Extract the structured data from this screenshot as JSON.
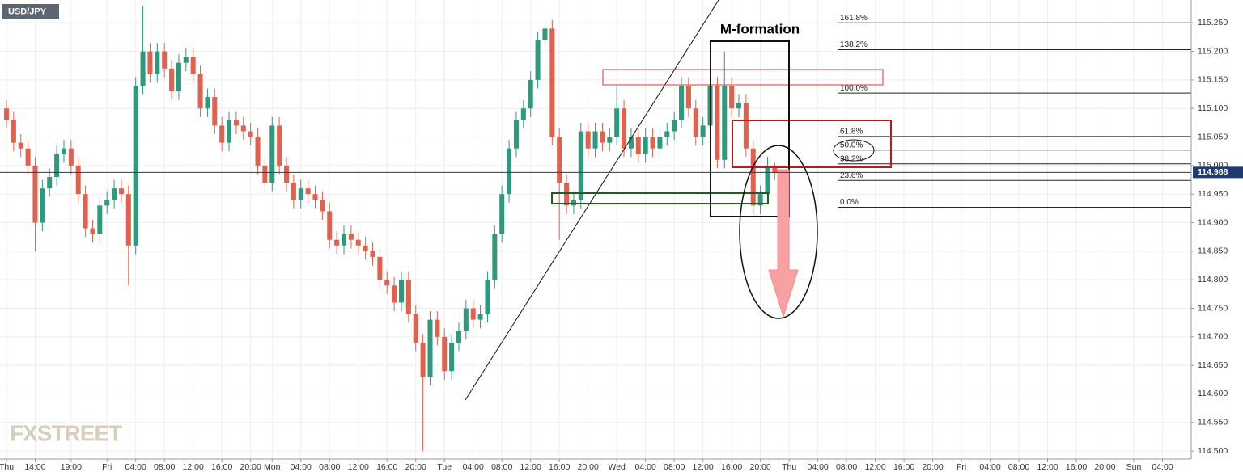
{
  "chart_data": {
    "type": "candlestick",
    "symbol": "USD/JPY",
    "watermark": "FXSTREET",
    "annotation": "M-formation",
    "up_color": "#2e9a7d",
    "down_color": "#e0614e",
    "grid": true,
    "xlim": [
      -0.9,
      165
    ],
    "ylim": [
      114.486,
      115.29
    ],
    "xticks": [
      {
        "value": 0,
        "label": "Thu"
      },
      {
        "value": 4,
        "label": "14:00"
      },
      {
        "value": 9,
        "label": "19:00"
      },
      {
        "value": 14,
        "label": "Fri"
      },
      {
        "value": 18,
        "label": "04:00"
      },
      {
        "value": 22,
        "label": "08:00"
      },
      {
        "value": 26,
        "label": "12:00"
      },
      {
        "value": 30,
        "label": "16:00"
      },
      {
        "value": 34,
        "label": "20:00"
      },
      {
        "value": 37,
        "label": "Mon"
      },
      {
        "value": 41,
        "label": "04:00"
      },
      {
        "value": 45,
        "label": "08:00"
      },
      {
        "value": 49,
        "label": "12:00"
      },
      {
        "value": 53,
        "label": "16:00"
      },
      {
        "value": 57,
        "label": "20:00"
      },
      {
        "value": 61,
        "label": "Tue"
      },
      {
        "value": 65,
        "label": "04:00"
      },
      {
        "value": 69,
        "label": "08:00"
      },
      {
        "value": 73,
        "label": "12:00"
      },
      {
        "value": 77,
        "label": "16:00"
      },
      {
        "value": 81,
        "label": "20:00"
      },
      {
        "value": 85,
        "label": "Wed"
      },
      {
        "value": 89,
        "label": "04:00"
      },
      {
        "value": 93,
        "label": "08:00"
      },
      {
        "value": 97,
        "label": "12:00"
      },
      {
        "value": 101,
        "label": "16:00"
      },
      {
        "value": 105,
        "label": "20:00"
      },
      {
        "value": 109,
        "label": "Thu"
      },
      {
        "value": 113,
        "label": "04:00"
      },
      {
        "value": 117,
        "label": "08:00"
      },
      {
        "value": 121,
        "label": "12:00"
      },
      {
        "value": 125,
        "label": "16:00"
      },
      {
        "value": 129,
        "label": "20:00"
      },
      {
        "value": 133,
        "label": "Fri"
      },
      {
        "value": 137,
        "label": "04:00"
      },
      {
        "value": 141,
        "label": "08:00"
      },
      {
        "value": 145,
        "label": "12:00"
      },
      {
        "value": 149,
        "label": "16:00"
      },
      {
        "value": 153,
        "label": "20:00"
      },
      {
        "value": 157,
        "label": "Sun"
      },
      {
        "value": 161,
        "label": "04:00"
      }
    ],
    "yticks": [
      {
        "value": 114.5,
        "label": "114.500"
      },
      {
        "value": 114.55,
        "label": "114.550"
      },
      {
        "value": 114.6,
        "label": "114.600"
      },
      {
        "value": 114.65,
        "label": "114.650"
      },
      {
        "value": 114.7,
        "label": "114.700"
      },
      {
        "value": 114.75,
        "label": "114.750"
      },
      {
        "value": 114.8,
        "label": "114.800"
      },
      {
        "value": 114.85,
        "label": "114.850"
      },
      {
        "value": 114.9,
        "label": "114.900"
      },
      {
        "value": 114.95,
        "label": "114.950"
      },
      {
        "value": 115,
        "label": "115.000"
      },
      {
        "value": 115.05,
        "label": "115.050"
      },
      {
        "value": 115.1,
        "label": "115.100"
      },
      {
        "value": 115.15,
        "label": "115.150"
      },
      {
        "value": 115.2,
        "label": "115.200"
      },
      {
        "value": 115.25,
        "label": "115.250"
      }
    ],
    "last_price": 114.988,
    "fib_labels": [
      "161.8%",
      "138.2%",
      "100.0%",
      "61.8%",
      "50.0%",
      "38.2%",
      "23.6%",
      "0.0%"
    ],
    "fib_prices": [
      115.25,
      115.203,
      115.127,
      115.051,
      115.027,
      115.003,
      114.974,
      114.927
    ],
    "x": [
      0,
      1,
      2,
      3,
      4,
      5,
      6,
      7,
      8,
      9,
      10,
      11,
      12,
      13,
      14,
      15,
      16,
      17,
      18,
      19,
      20,
      21,
      22,
      23,
      24,
      25,
      26,
      27,
      28,
      29,
      30,
      31,
      32,
      33,
      34,
      35,
      36,
      37,
      38,
      39,
      40,
      41,
      42,
      43,
      44,
      45,
      46,
      47,
      48,
      49,
      50,
      51,
      52,
      53,
      54,
      55,
      56,
      57,
      58,
      59,
      60,
      61,
      62,
      63,
      64,
      65,
      66,
      67,
      68,
      69,
      70,
      71,
      72,
      73,
      74,
      75,
      76,
      77,
      78,
      79,
      80,
      81,
      82,
      83,
      84,
      85,
      86,
      87,
      88,
      89,
      90,
      91,
      92,
      93,
      94,
      95,
      96,
      97,
      98,
      99,
      100,
      101,
      102,
      103,
      104,
      105,
      106,
      107
    ],
    "open": [
      115.1,
      115.08,
      115.04,
      115.03,
      115,
      114.9,
      114.96,
      114.98,
      115.02,
      115.03,
      115,
      114.95,
      114.89,
      114.88,
      114.93,
      114.94,
      114.96,
      114.95,
      114.86,
      115.14,
      115.2,
      115.16,
      115.2,
      115.17,
      115.13,
      115.18,
      115.19,
      115.16,
      115.1,
      115.12,
      115.07,
      115.04,
      115.08,
      115.07,
      115.06,
      115.05,
      115,
      114.97,
      115.07,
      115,
      114.97,
      114.94,
      114.96,
      114.95,
      114.94,
      114.92,
      114.87,
      114.86,
      114.88,
      114.87,
      114.86,
      114.85,
      114.84,
      114.8,
      114.79,
      114.76,
      114.8,
      114.74,
      114.69,
      114.63,
      114.73,
      114.7,
      114.64,
      114.69,
      114.71,
      114.75,
      114.73,
      114.74,
      114.8,
      114.88,
      114.95,
      115.03,
      115.08,
      115.1,
      115.15,
      115.22,
      115.24,
      115.05,
      114.97,
      114.93,
      114.94,
      115.06,
      115.03,
      115.06,
      115.04,
      115.05,
      115.1,
      115.03,
      115.05,
      115.02,
      115.05,
      115.03,
      115.05,
      115.06,
      115.08,
      115.14,
      115.1,
      115.05,
      115.07,
      115.14,
      115.01,
      115.14,
      115.1,
      115.11,
      115.03,
      114.93,
      114.95,
      115
    ],
    "high": [
      115.115,
      115.095,
      115.055,
      115.045,
      115.015,
      114.975,
      114.995,
      115.035,
      115.045,
      115.045,
      115.015,
      114.965,
      114.905,
      114.945,
      114.955,
      114.975,
      114.975,
      114.965,
      115.155,
      115.28,
      115.215,
      115.215,
      115.215,
      115.185,
      115.195,
      115.205,
      115.205,
      115.175,
      115.135,
      115.135,
      115.085,
      115.095,
      115.095,
      115.085,
      115.075,
      115.065,
      115.015,
      115.085,
      115.085,
      115.015,
      114.985,
      114.975,
      114.975,
      114.965,
      114.955,
      114.935,
      114.885,
      114.895,
      114.895,
      114.885,
      114.875,
      114.865,
      114.855,
      114.815,
      114.805,
      114.815,
      114.815,
      114.755,
      114.705,
      114.745,
      114.745,
      114.715,
      114.705,
      114.725,
      114.765,
      114.765,
      114.755,
      114.815,
      114.895,
      114.965,
      115.045,
      115.095,
      115.115,
      115.165,
      115.235,
      115.245,
      115.255,
      115.065,
      114.985,
      114.955,
      115.075,
      115.075,
      115.075,
      115.075,
      115.065,
      115.14,
      115.115,
      115.065,
      115.065,
      115.065,
      115.065,
      115.065,
      115.075,
      115.095,
      115.155,
      115.155,
      115.115,
      115.085,
      115.155,
      115.155,
      115.2,
      115.155,
      115.125,
      115.125,
      115.045,
      114.965,
      115.015,
      115.005
    ],
    "low": [
      115.065,
      115.025,
      115.015,
      114.985,
      114.85,
      114.885,
      114.945,
      114.965,
      115.005,
      114.985,
      114.935,
      114.875,
      114.865,
      114.865,
      114.915,
      114.925,
      114.935,
      114.79,
      114.845,
      115.125,
      115.145,
      115.145,
      115.155,
      115.115,
      115.115,
      115.165,
      115.145,
      115.085,
      115.085,
      115.055,
      115.025,
      115.025,
      115.055,
      115.045,
      115.035,
      114.985,
      114.955,
      114.955,
      114.985,
      114.955,
      114.925,
      114.925,
      114.935,
      114.925,
      114.905,
      114.855,
      114.845,
      114.845,
      114.855,
      114.845,
      114.835,
      114.825,
      114.785,
      114.775,
      114.745,
      114.745,
      114.725,
      114.675,
      114.5,
      114.615,
      114.685,
      114.625,
      114.625,
      114.675,
      114.695,
      114.715,
      114.715,
      114.725,
      114.785,
      114.865,
      114.935,
      115.015,
      115.065,
      115.085,
      115.135,
      115.205,
      115.035,
      114.87,
      114.915,
      114.915,
      114.925,
      115.015,
      115.015,
      115.025,
      115.025,
      115.035,
      115.015,
      115.015,
      115.005,
      115.005,
      115.015,
      115.015,
      115.035,
      115.045,
      115.065,
      115.085,
      115.035,
      115.035,
      115.055,
      114.995,
      114.995,
      115.085,
      115.085,
      115.015,
      114.915,
      114.915,
      114.935,
      114.975
    ],
    "close": [
      115.08,
      115.04,
      115.03,
      115,
      114.9,
      114.96,
      114.98,
      115.02,
      115.03,
      115,
      114.95,
      114.89,
      114.88,
      114.93,
      114.94,
      114.96,
      114.95,
      114.86,
      115.14,
      115.2,
      115.16,
      115.2,
      115.17,
      115.13,
      115.18,
      115.19,
      115.16,
      115.1,
      115.12,
      115.07,
      115.04,
      115.08,
      115.07,
      115.06,
      115.05,
      115,
      114.97,
      115.07,
      115,
      114.97,
      114.94,
      114.96,
      114.95,
      114.94,
      114.92,
      114.87,
      114.86,
      114.88,
      114.87,
      114.86,
      114.85,
      114.84,
      114.8,
      114.79,
      114.76,
      114.8,
      114.74,
      114.69,
      114.63,
      114.73,
      114.7,
      114.64,
      114.69,
      114.71,
      114.75,
      114.73,
      114.74,
      114.8,
      114.88,
      114.95,
      115.03,
      115.08,
      115.1,
      115.15,
      115.22,
      115.24,
      115.05,
      114.97,
      114.93,
      114.94,
      115.06,
      115.03,
      115.06,
      115.04,
      115.05,
      115.1,
      115.03,
      115.05,
      115.02,
      115.05,
      115.03,
      115.05,
      115.06,
      115.08,
      115.14,
      115.1,
      115.05,
      115.07,
      115.14,
      115.01,
      115.14,
      115.1,
      115.11,
      115.03,
      114.93,
      114.95,
      115,
      114.988
    ]
  }
}
